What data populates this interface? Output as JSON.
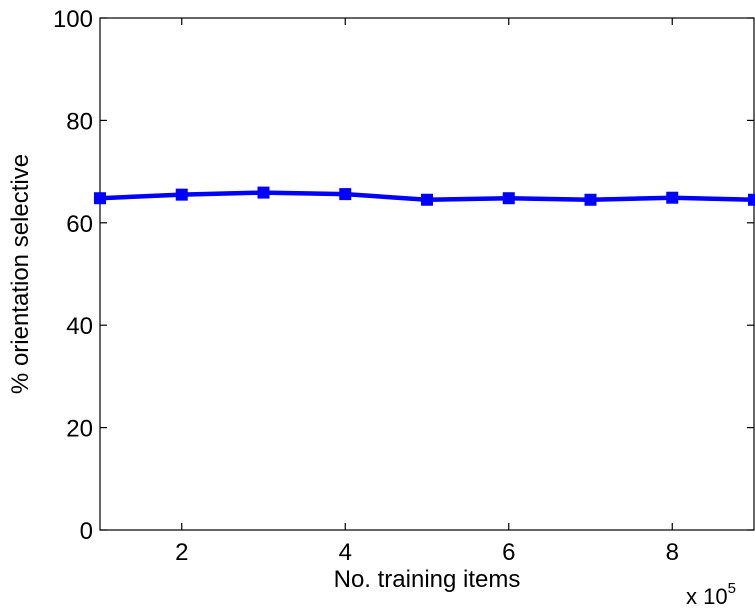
{
  "chart_data": {
    "type": "line",
    "xlabel": "No. training items",
    "ylabel": "% orientation selective",
    "x_multiplier": {
      "base": "x 10",
      "exponent": "5"
    },
    "xlim": [
      1,
      9
    ],
    "ylim": [
      0,
      100
    ],
    "xticks": [
      2,
      4,
      6,
      8
    ],
    "xtick_labels": [
      "2",
      "4",
      "6",
      "8"
    ],
    "yticks": [
      0,
      20,
      40,
      60,
      80,
      100
    ],
    "ytick_labels": [
      "0",
      "20",
      "40",
      "60",
      "80",
      "100"
    ],
    "grid": false,
    "series": [
      {
        "color": "#0000ff",
        "marker": "square",
        "x": [
          1,
          2,
          3,
          4,
          5,
          6,
          7,
          8,
          9
        ],
        "y": [
          64.8,
          65.5,
          65.9,
          65.6,
          64.5,
          64.8,
          64.5,
          64.9,
          64.5
        ]
      }
    ]
  }
}
